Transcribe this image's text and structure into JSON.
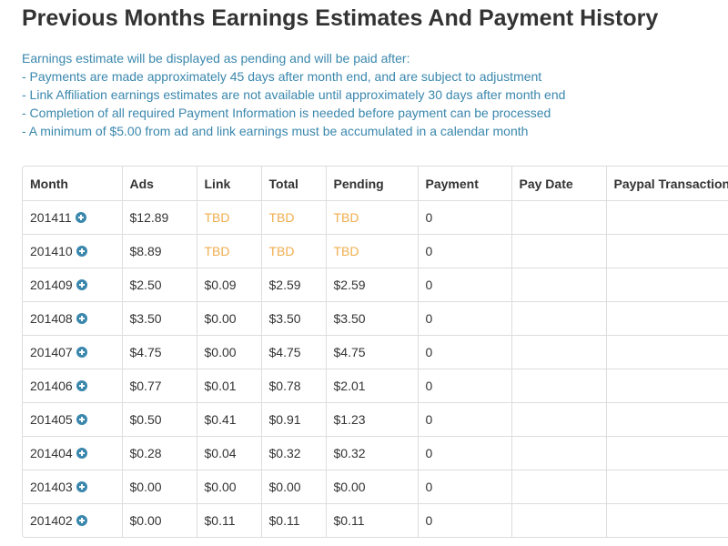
{
  "page": {
    "title": "Previous Months Earnings Estimates And Payment History",
    "notes": [
      "Earnings estimate will be displayed as pending and will be paid after:",
      "- Payments are made approximately 45 days after month end, and are subject to adjustment",
      "- Link Affiliation earnings estimates are not available until approximately 30 days after month end",
      "- Completion of all required Payment Information is needed before payment can be processed",
      "- A minimum of $5.00 from ad and link earnings must be accumulated in a calendar month"
    ]
  },
  "colors": {
    "notes_text": "#3a87ad",
    "tbd_text": "#f0ad4e",
    "expand_icon": "#3a87ad"
  },
  "table": {
    "headers": [
      "Month",
      "Ads",
      "Link",
      "Total",
      "Pending",
      "Payment",
      "Pay Date",
      "Paypal Transaction"
    ],
    "row_icon": "plus-circle-icon",
    "rows": [
      {
        "month": "201411",
        "ads": "$12.89",
        "link": "TBD",
        "total": "TBD",
        "pending": "TBD",
        "payment": "0",
        "pay_date": "",
        "paypal": ""
      },
      {
        "month": "201410",
        "ads": "$8.89",
        "link": "TBD",
        "total": "TBD",
        "pending": "TBD",
        "payment": "0",
        "pay_date": "",
        "paypal": ""
      },
      {
        "month": "201409",
        "ads": "$2.50",
        "link": "$0.09",
        "total": "$2.59",
        "pending": "$2.59",
        "payment": "0",
        "pay_date": "",
        "paypal": ""
      },
      {
        "month": "201408",
        "ads": "$3.50",
        "link": "$0.00",
        "total": "$3.50",
        "pending": "$3.50",
        "payment": "0",
        "pay_date": "",
        "paypal": ""
      },
      {
        "month": "201407",
        "ads": "$4.75",
        "link": "$0.00",
        "total": "$4.75",
        "pending": "$4.75",
        "payment": "0",
        "pay_date": "",
        "paypal": ""
      },
      {
        "month": "201406",
        "ads": "$0.77",
        "link": "$0.01",
        "total": "$0.78",
        "pending": "$2.01",
        "payment": "0",
        "pay_date": "",
        "paypal": ""
      },
      {
        "month": "201405",
        "ads": "$0.50",
        "link": "$0.41",
        "total": "$0.91",
        "pending": "$1.23",
        "payment": "0",
        "pay_date": "",
        "paypal": ""
      },
      {
        "month": "201404",
        "ads": "$0.28",
        "link": "$0.04",
        "total": "$0.32",
        "pending": "$0.32",
        "payment": "0",
        "pay_date": "",
        "paypal": ""
      },
      {
        "month": "201403",
        "ads": "$0.00",
        "link": "$0.00",
        "total": "$0.00",
        "pending": "$0.00",
        "payment": "0",
        "pay_date": "",
        "paypal": ""
      },
      {
        "month": "201402",
        "ads": "$0.00",
        "link": "$0.11",
        "total": "$0.11",
        "pending": "$0.11",
        "payment": "0",
        "pay_date": "",
        "paypal": ""
      }
    ]
  }
}
